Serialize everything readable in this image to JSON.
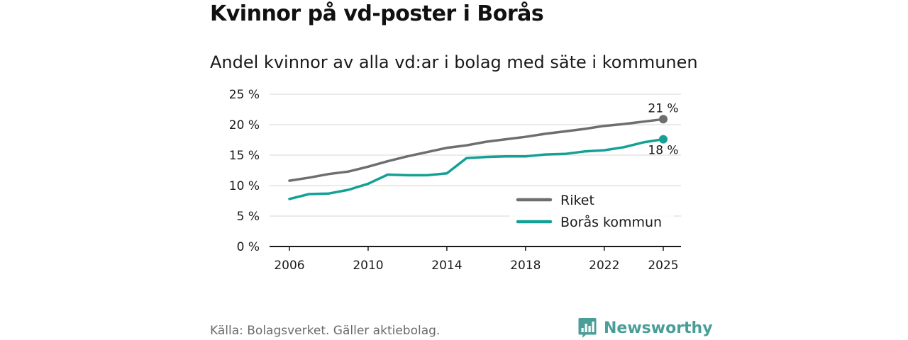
{
  "title": "Kvinnor på vd-poster i Borås",
  "subtitle": "Andel kvinnor av alla vd:ar i bolag med säte i kommunen",
  "source": "Källa: Bolagsverket. Gäller aktiebolag.",
  "brand": {
    "name": "Newsworthy",
    "color": "#4a9e98",
    "icon": "bar-chart-speech-bubble-icon"
  },
  "chart_data": {
    "type": "line",
    "title": "Kvinnor på vd-poster i Borås",
    "subtitle": "Andel kvinnor av alla vd:ar i bolag med säte i kommunen",
    "xlabel": "",
    "ylabel": "",
    "x": [
      2006,
      2007,
      2008,
      2009,
      2010,
      2011,
      2012,
      2013,
      2014,
      2015,
      2016,
      2017,
      2018,
      2019,
      2020,
      2021,
      2022,
      2023,
      2024,
      2025
    ],
    "series": [
      {
        "name": "Riket",
        "color": "#6e6e70",
        "values": [
          10.8,
          11.3,
          11.9,
          12.3,
          13.1,
          14.0,
          14.8,
          15.5,
          16.2,
          16.6,
          17.2,
          17.6,
          18.0,
          18.5,
          18.9,
          19.3,
          19.8,
          20.1,
          20.5,
          20.9
        ],
        "end_label": "21 %"
      },
      {
        "name": "Borås kommun",
        "color": "#14a096",
        "values": [
          7.8,
          8.6,
          8.7,
          9.3,
          10.3,
          11.8,
          11.7,
          11.7,
          12.0,
          14.5,
          14.7,
          14.8,
          14.8,
          15.1,
          15.2,
          15.6,
          15.8,
          16.3,
          17.1,
          17.6
        ],
        "end_label": "18 %"
      }
    ],
    "ylim": [
      0,
      25
    ],
    "y_ticks": [
      0,
      5,
      10,
      15,
      20,
      25
    ],
    "y_tick_labels": [
      "0 %",
      "5 %",
      "10 %",
      "15 %",
      "20 %",
      "25 %"
    ],
    "x_ticks": [
      2006,
      2010,
      2014,
      2018,
      2022,
      2025
    ],
    "x_tick_labels": [
      "2006",
      "2010",
      "2014",
      "2018",
      "2022",
      "2025"
    ],
    "grid": true,
    "legend_position": "bottom-right"
  }
}
